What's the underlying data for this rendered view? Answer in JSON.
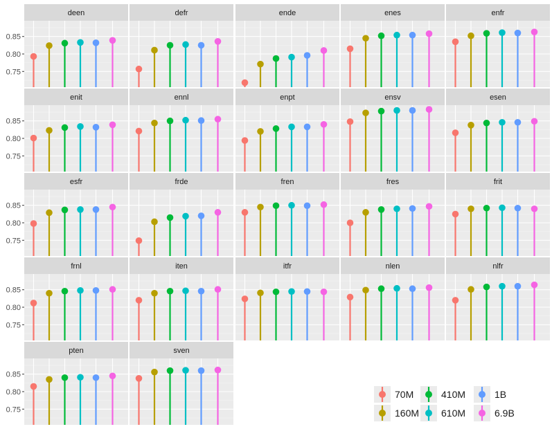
{
  "chart_data": {
    "type": "lollipop",
    "facet_layout": "5 columns x 5 rows",
    "y_ticks": [
      0.75,
      0.8,
      0.85
    ],
    "y_tick_labels": [
      "0.75",
      "0.80",
      "0.85"
    ],
    "ylim": [
      0.705,
      0.895
    ],
    "series_order": [
      "70M",
      "160M",
      "410M",
      "610M",
      "1B",
      "6.9B"
    ],
    "series_colors": [
      "#F8766D",
      "#B79F00",
      "#00BA38",
      "#00BFC4",
      "#619CFF",
      "#F564E3"
    ],
    "panels": [
      {
        "label": "deen",
        "values": [
          0.793,
          0.824,
          0.831,
          0.833,
          0.832,
          0.839
        ]
      },
      {
        "label": "defr",
        "values": [
          0.757,
          0.811,
          0.825,
          0.827,
          0.825,
          0.836
        ]
      },
      {
        "label": "ende",
        "values": [
          0.718,
          0.771,
          0.787,
          0.791,
          0.796,
          0.81
        ]
      },
      {
        "label": "enes",
        "values": [
          0.815,
          0.845,
          0.852,
          0.854,
          0.854,
          0.858
        ]
      },
      {
        "label": "enfr",
        "values": [
          0.835,
          0.852,
          0.859,
          0.861,
          0.86,
          0.863
        ]
      },
      {
        "label": "enit",
        "values": [
          0.801,
          0.823,
          0.831,
          0.834,
          0.832,
          0.839
        ]
      },
      {
        "label": "ennl",
        "values": [
          0.821,
          0.844,
          0.85,
          0.852,
          0.851,
          0.855
        ]
      },
      {
        "label": "enpt",
        "values": [
          0.794,
          0.82,
          0.828,
          0.833,
          0.833,
          0.84
        ]
      },
      {
        "label": "ensv",
        "values": [
          0.848,
          0.873,
          0.878,
          0.88,
          0.88,
          0.883
        ]
      },
      {
        "label": "esen",
        "values": [
          0.816,
          0.838,
          0.844,
          0.846,
          0.846,
          0.849
        ]
      },
      {
        "label": "esfr",
        "values": [
          0.798,
          0.829,
          0.837,
          0.838,
          0.838,
          0.845
        ]
      },
      {
        "label": "frde",
        "values": [
          0.749,
          0.803,
          0.815,
          0.819,
          0.82,
          0.83
        ]
      },
      {
        "label": "fren",
        "values": [
          0.83,
          0.845,
          0.849,
          0.85,
          0.849,
          0.852
        ]
      },
      {
        "label": "fres",
        "values": [
          0.8,
          0.83,
          0.838,
          0.84,
          0.841,
          0.847
        ]
      },
      {
        "label": "frit",
        "values": [
          0.825,
          0.84,
          0.842,
          0.843,
          0.842,
          0.84
        ]
      },
      {
        "label": "frnl",
        "values": [
          0.812,
          0.84,
          0.846,
          0.848,
          0.848,
          0.851
        ]
      },
      {
        "label": "iten",
        "values": [
          0.82,
          0.84,
          0.846,
          0.847,
          0.846,
          0.851
        ]
      },
      {
        "label": "itfr",
        "values": [
          0.824,
          0.841,
          0.844,
          0.845,
          0.845,
          0.844
        ]
      },
      {
        "label": "nlen",
        "values": [
          0.829,
          0.849,
          0.853,
          0.854,
          0.853,
          0.856
        ]
      },
      {
        "label": "nlfr",
        "values": [
          0.82,
          0.851,
          0.858,
          0.86,
          0.86,
          0.864
        ]
      },
      {
        "label": "pten",
        "values": [
          0.815,
          0.835,
          0.84,
          0.841,
          0.84,
          0.845
        ]
      },
      {
        "label": "sven",
        "values": [
          0.838,
          0.856,
          0.86,
          0.861,
          0.86,
          0.862
        ]
      }
    ],
    "legend": {
      "position": "bottom-right",
      "entries": [
        {
          "label": "70M",
          "color": "#F8766D"
        },
        {
          "label": "410M",
          "color": "#00BA38"
        },
        {
          "label": "1B",
          "color": "#619CFF"
        },
        {
          "label": "160M",
          "color": "#B79F00"
        },
        {
          "label": "610M",
          "color": "#00BFC4"
        },
        {
          "label": "6.9B",
          "color": "#F564E3"
        }
      ]
    }
  }
}
